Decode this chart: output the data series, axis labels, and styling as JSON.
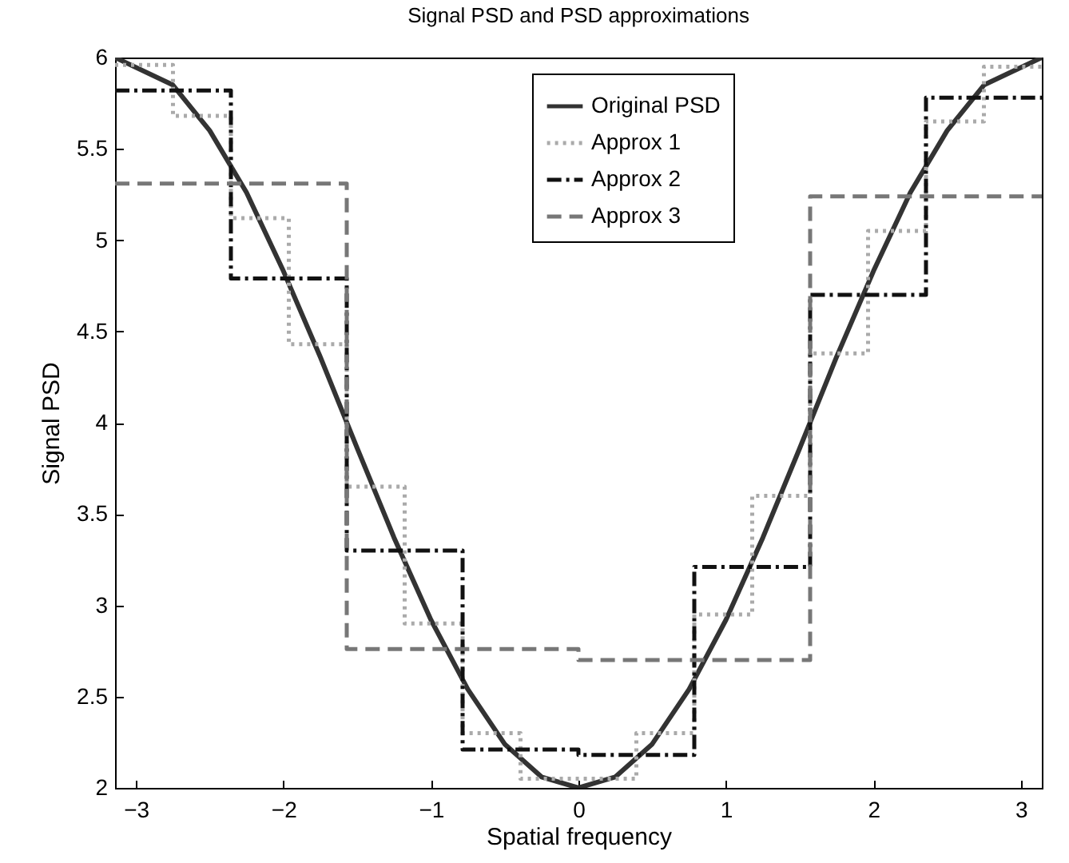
{
  "chart_data": {
    "type": "line",
    "title": "Signal PSD and PSD approximations",
    "xlabel": "Spatial frequency",
    "ylabel": "Signal PSD",
    "xlim": [
      -3.1416,
      3.1416
    ],
    "ylim": [
      2,
      6
    ],
    "xticks": [
      -3,
      -2,
      -1,
      0,
      1,
      2,
      3
    ],
    "yticks": [
      2,
      2.5,
      3,
      3.5,
      4,
      4.5,
      5,
      5.5,
      6
    ],
    "grid": false,
    "legend": "top",
    "series": [
      {
        "name": "Original PSD",
        "color": "#333333",
        "line_style": "solid",
        "x": [
          -3.1416,
          -2.75,
          -2.5,
          -2.25,
          -2,
          -1.75,
          -1.5,
          -1.25,
          -1,
          -0.75,
          -0.5,
          -0.25,
          0,
          0.25,
          0.5,
          0.75,
          1,
          1.25,
          1.5,
          1.75,
          2,
          2.25,
          2.5,
          2.75,
          3.1416
        ],
        "values": [
          6,
          5.85,
          5.6,
          5.26,
          4.83,
          4.36,
          3.86,
          3.37,
          2.92,
          2.54,
          2.24,
          2.06,
          2,
          2.06,
          2.24,
          2.54,
          2.92,
          3.37,
          3.86,
          4.36,
          4.83,
          5.26,
          5.6,
          5.85,
          6
        ]
      },
      {
        "name": "Approx 1",
        "type": "step",
        "color": "#aaaaaa",
        "line_style": "dotted",
        "x": [
          -3.1416,
          -2.7489,
          -2.3562,
          -1.9635,
          -1.5708,
          -1.1781,
          -0.7854,
          -0.3927,
          0,
          0.3927,
          0.7854,
          1.1781,
          1.5708,
          1.9635,
          2.3562,
          2.7489,
          3.1416
        ],
        "values": [
          5.96,
          5.68,
          5.12,
          4.43,
          3.65,
          2.9,
          2.3,
          2.05,
          2.05,
          2.3,
          2.95,
          3.6,
          4.38,
          5.05,
          5.65,
          5.95,
          5.95
        ]
      },
      {
        "name": "Approx 2",
        "type": "step",
        "color": "#111111",
        "line_style": "dashdot",
        "x": [
          -3.1416,
          -2.3562,
          -1.5708,
          -0.7854,
          0,
          0.7854,
          1.5708,
          2.3562,
          3.1416
        ],
        "values": [
          5.82,
          4.79,
          3.3,
          2.21,
          2.18,
          3.21,
          4.7,
          5.78,
          5.78
        ]
      },
      {
        "name": "Approx 3",
        "type": "step",
        "color": "#777777",
        "line_style": "dashed",
        "x": [
          -3.1416,
          -1.5708,
          0,
          1.5708,
          3.1416
        ],
        "values": [
          5.31,
          2.76,
          2.7,
          5.24,
          5.24
        ]
      }
    ]
  }
}
